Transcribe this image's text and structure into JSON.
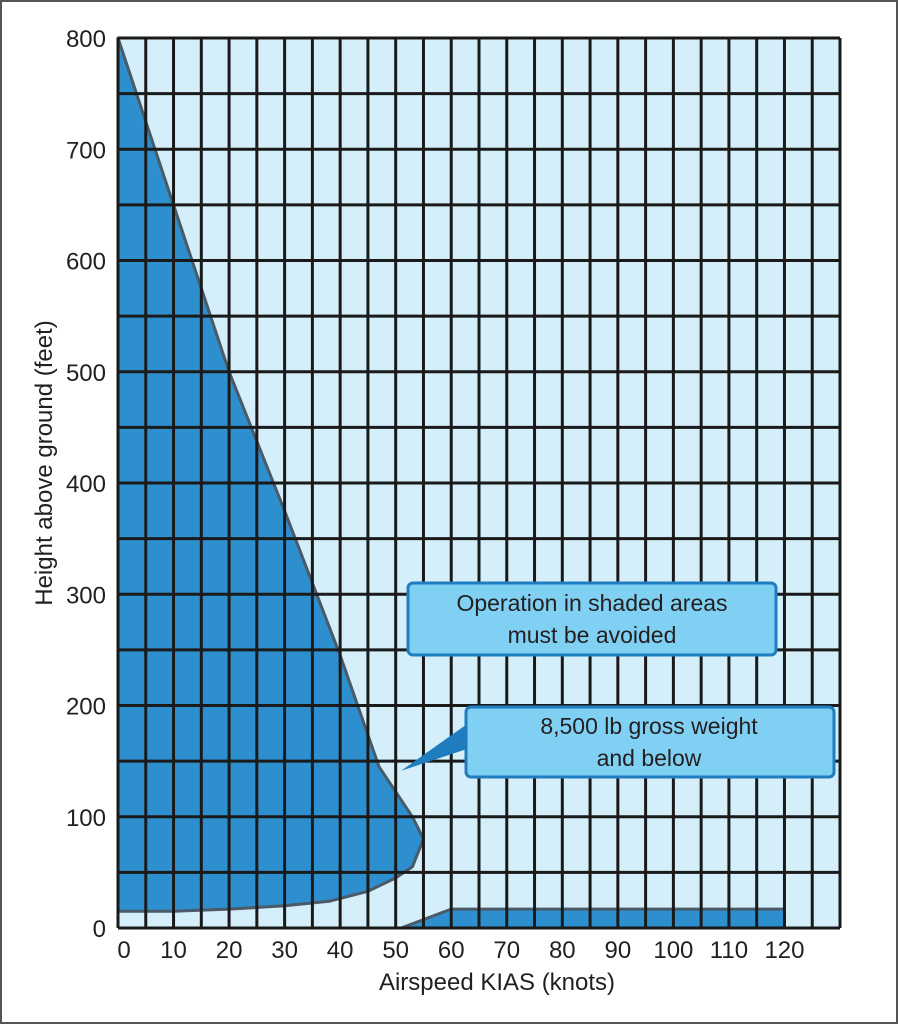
{
  "chart_data": {
    "type": "area",
    "xlabel": "Airspeed KIAS (knots)",
    "ylabel": "Height above ground (feet)",
    "xlim": [
      0,
      130
    ],
    "ylim": [
      0,
      800
    ],
    "x_ticks": [
      0,
      10,
      20,
      30,
      40,
      50,
      60,
      70,
      80,
      90,
      100,
      110,
      120
    ],
    "y_ticks": [
      0,
      100,
      200,
      300,
      400,
      500,
      600,
      700,
      800
    ],
    "grid": true,
    "regions": [
      {
        "shape": "avoid-area-low-speed",
        "points": [
          [
            0,
            800
          ],
          [
            10,
            650
          ],
          [
            20,
            500
          ],
          [
            30,
            375
          ],
          [
            40,
            245
          ],
          [
            47,
            145
          ],
          [
            53,
            100
          ],
          [
            55,
            80
          ],
          [
            53,
            55
          ],
          [
            50,
            45
          ],
          [
            45,
            33
          ],
          [
            38,
            24
          ],
          [
            30,
            20
          ],
          [
            20,
            17
          ],
          [
            10,
            15
          ],
          [
            0,
            15
          ]
        ]
      },
      {
        "shape": "avoid-area-high-speed",
        "points": [
          [
            51,
            0
          ],
          [
            60,
            17
          ],
          [
            120,
            17
          ],
          [
            120,
            0
          ]
        ]
      }
    ],
    "annotations": [
      {
        "text_lines": [
          "Operation in shaded areas",
          "must be avoided"
        ],
        "pointer": false
      },
      {
        "text_lines": [
          "8,500 lb gross weight",
          "and below"
        ],
        "pointer_to": [
          51,
          145
        ]
      }
    ]
  },
  "colors": {
    "plot_background": "#d4effa",
    "shaded_area": "#2e8fcf",
    "shaded_edge": "#4a5a68",
    "grid": "#1a1a1a",
    "callout_fill": "#7fd0f3",
    "callout_border": "#1f7cbf"
  }
}
